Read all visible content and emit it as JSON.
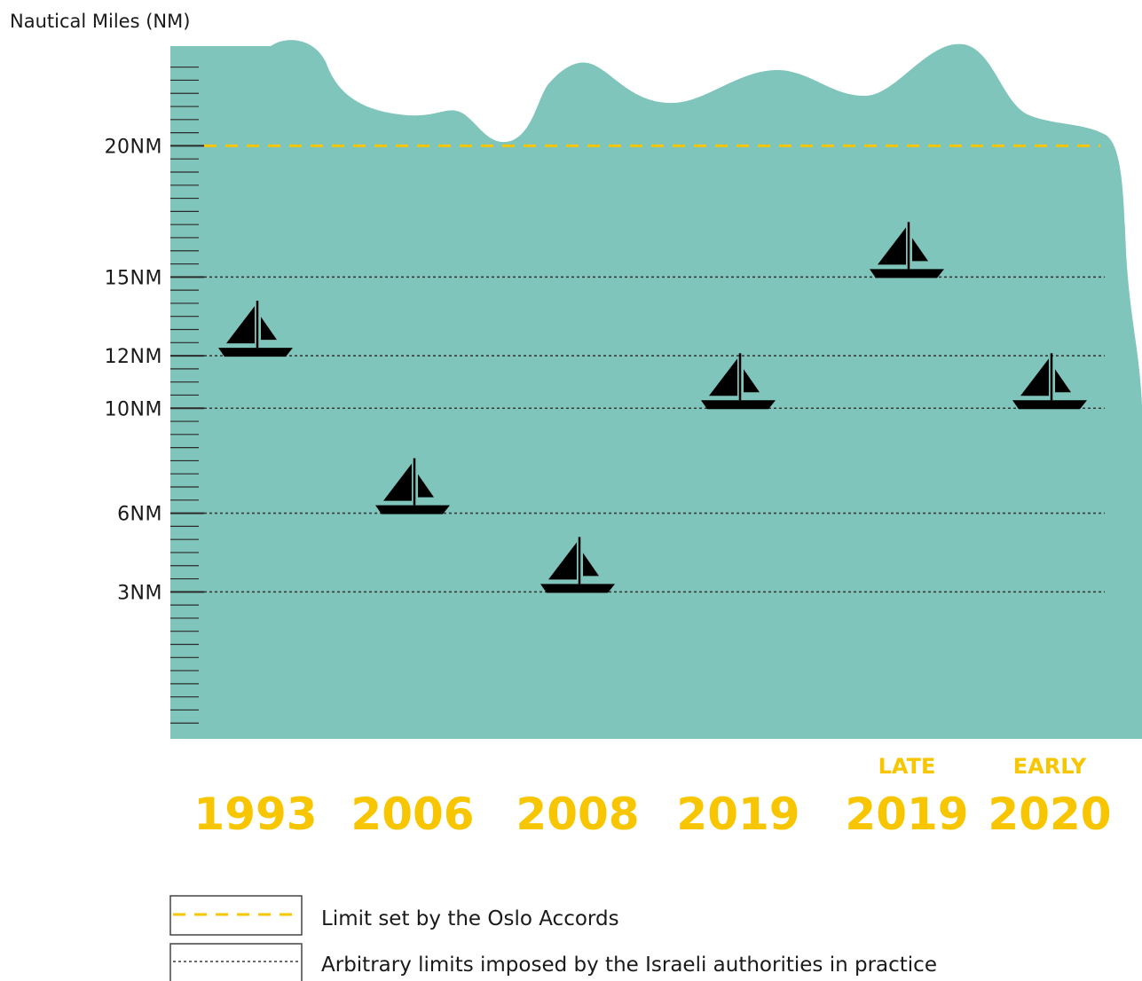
{
  "chart_data": {
    "type": "scatter",
    "ylabel": "Nautical Miles (NM)",
    "y_ticks": [
      {
        "value": 20,
        "label": "20NM"
      },
      {
        "value": 15,
        "label": "15NM"
      },
      {
        "value": 12,
        "label": "12NM"
      },
      {
        "value": 10,
        "label": "10NM"
      },
      {
        "value": 6,
        "label": "6NM"
      },
      {
        "value": 3,
        "label": "3NM"
      }
    ],
    "ylim": [
      -2.6,
      23.8
    ],
    "categories": [
      {
        "year": "1993",
        "qualifier": ""
      },
      {
        "year": "2006",
        "qualifier": ""
      },
      {
        "year": "2008",
        "qualifier": ""
      },
      {
        "year": "2019",
        "qualifier": ""
      },
      {
        "year": "2019",
        "qualifier": "LATE"
      },
      {
        "year": "2020",
        "qualifier": "EARLY"
      }
    ],
    "values": [
      12,
      6,
      3,
      10,
      15,
      10
    ],
    "reference_line": {
      "value": 20,
      "style": "dashed",
      "color": "#f7c600"
    },
    "arbitrary_limit_lines": [
      15,
      12,
      10,
      6,
      3
    ],
    "marker": "sailboat-icon",
    "colors": {
      "sea": "#7fc5bb",
      "year": "#f7c600",
      "oslo_line": "#f7c600",
      "limit_line": "#3a3a3a",
      "boat": "#000000"
    },
    "legend": [
      {
        "key": "oslo",
        "label": "Limit set by the Oslo Accords",
        "style": "dashed-yellow"
      },
      {
        "key": "israeli",
        "label": "Arbitrary limits imposed by the Israeli authorities in practice",
        "style": "dotted-dark"
      }
    ],
    "legend_position": "bottom-left",
    "grid": false
  }
}
